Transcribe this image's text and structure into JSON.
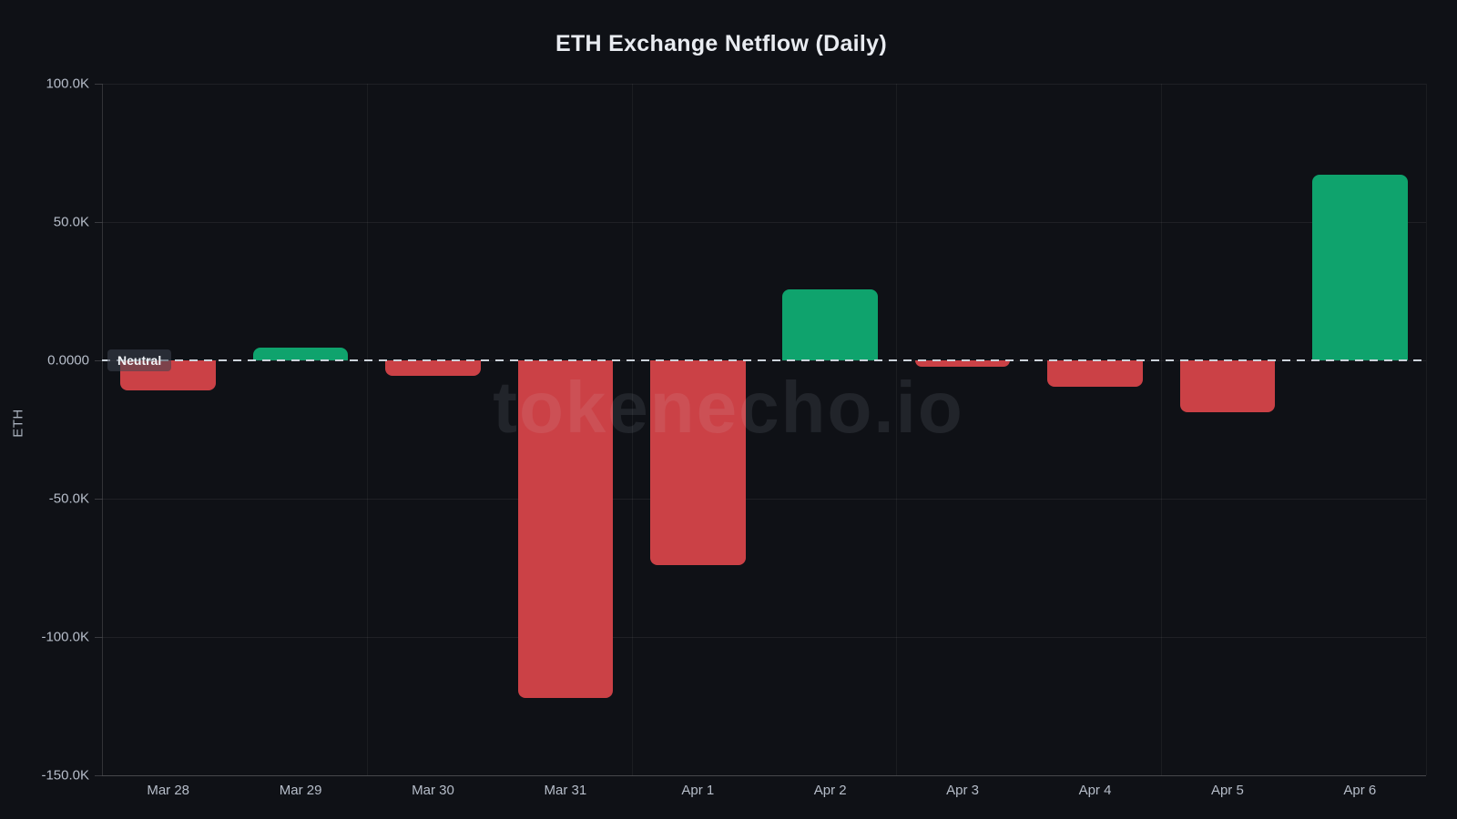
{
  "title": "ETH Exchange Netflow (Daily)",
  "watermark": "tokenecho.io",
  "neutral_label": "Neutral",
  "colors": {
    "background": "#0f1116",
    "positive": "#0fa36d",
    "negative": "#cb4146",
    "zero_line": "#ccd3db",
    "tick_text": "#b6bdc9",
    "title_text": "#e9ecf1"
  },
  "y_axis": {
    "label": "ETH",
    "ticks": [
      {
        "label": "100.0K",
        "value": 100000
      },
      {
        "label": "50.0K",
        "value": 50000
      },
      {
        "label": "0.0000",
        "value": 0
      },
      {
        "label": "-50.0K",
        "value": -50000
      },
      {
        "label": "-100.0K",
        "value": -100000
      },
      {
        "label": "-150.0K",
        "value": -150000
      }
    ]
  },
  "chart_data": {
    "type": "bar",
    "title": "ETH Exchange Netflow (Daily)",
    "xlabel": "",
    "ylabel": "ETH",
    "ylim": [
      -150000,
      100000
    ],
    "grid": true,
    "legend": false,
    "zero_marker_label": "Neutral",
    "categories": [
      "Mar 28",
      "Mar 29",
      "Mar 30",
      "Mar 31",
      "Apr 1",
      "Apr 2",
      "Apr 3",
      "Apr 4",
      "Apr 5",
      "Apr 6"
    ],
    "series": [
      {
        "name": "ETH Exchange Netflow",
        "values": [
          -11000,
          4600,
          -5600,
          -122000,
          -74000,
          25700,
          -2300,
          -9500,
          -18700,
          67000
        ]
      }
    ]
  }
}
